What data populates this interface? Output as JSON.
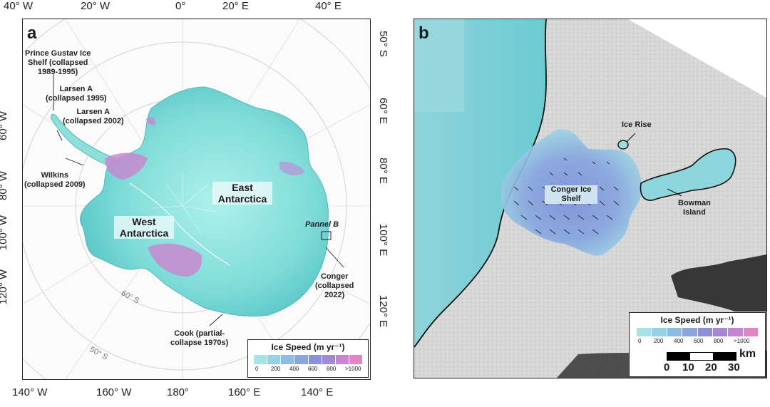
{
  "panel_a": {
    "letter": "a",
    "top_ticks": [
      "40° W",
      "20° W",
      "0°",
      "20° E",
      "40° E"
    ],
    "bottom_ticks": [
      "140° W",
      "160° W",
      "180°",
      "160° E",
      "140° E"
    ],
    "left_ticks": [
      "60° W",
      "80° W",
      "100° W",
      "120° W"
    ],
    "right_ticks": [
      "50° S",
      "60° E",
      "80° E",
      "100° E",
      "120° E"
    ],
    "graticule": [
      "60° S",
      "50° S"
    ],
    "regions": {
      "east": "East\nAntarctica",
      "west": "West\nAntarctica"
    },
    "annotations": {
      "prince_gustav": "Prince Gustav Ice\nShelf (collapsed\n1989-1995)",
      "larsen_a_1995": "Larsen A\n(collapsed 1995)",
      "larsen_a_2002": "Larsen A\n(collapsed 2002)",
      "wilkins": "Wilkins\n(collapsed 2009)",
      "pannel_b": "Pannel B",
      "conger": "Conger\n(collapsed\n2022)",
      "cook": "Cook (partial-\ncollapse 1970s)"
    },
    "legend": {
      "title": "Ice Speed (m yr⁻¹)",
      "ticks": [
        "0",
        "200",
        "400",
        "600",
        "800",
        ">1000"
      ],
      "colors": [
        "#a6e2e6",
        "#96d2e6",
        "#8cbde6",
        "#8aa6e0",
        "#8c8fd9",
        "#a687d6",
        "#c684d2",
        "#e185c8"
      ]
    }
  },
  "panel_b": {
    "letter": "b",
    "labels": {
      "ice_rise": "Ice Rise",
      "conger": "Conger Ice\nShelf",
      "bowman": "Bowman\nIsland"
    },
    "legend": {
      "title": "Ice Speed (m yr⁻¹)",
      "ticks": [
        "0",
        "200",
        "400",
        "600",
        "800",
        ">1000"
      ],
      "colors": [
        "#a6e2e6",
        "#96d2e6",
        "#8cbde6",
        "#8aa6e0",
        "#8c8fd9",
        "#a687d6",
        "#c684d2",
        "#e185c8"
      ]
    },
    "scale": {
      "unit": "km",
      "ticks": [
        "0",
        "10",
        "20",
        "30"
      ]
    }
  }
}
